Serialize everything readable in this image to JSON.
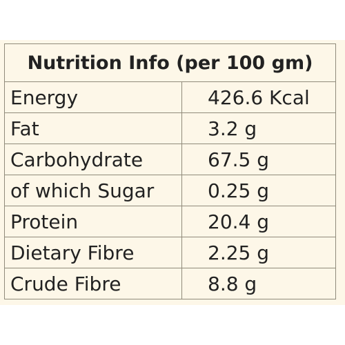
{
  "table": {
    "title": "Nutrition Info (per 100 gm)",
    "rows": [
      {
        "nutrient": "Energy",
        "value": "426.6 Kcal"
      },
      {
        "nutrient": "Fat",
        "value": "3.2 g"
      },
      {
        "nutrient": "Carbohydrate",
        "value": "67.5 g"
      },
      {
        "nutrient": "of which Sugar",
        "value": "0.25 g"
      },
      {
        "nutrient": "Protein",
        "value": "20.4 g"
      },
      {
        "nutrient": "Dietary Fibre",
        "value": "2.25 g"
      },
      {
        "nutrient": "Crude Fibre",
        "value": "8.8 g"
      }
    ]
  },
  "colors": {
    "background": "#fdf7e8",
    "border": "#8f8a7a",
    "text": "#222222"
  }
}
